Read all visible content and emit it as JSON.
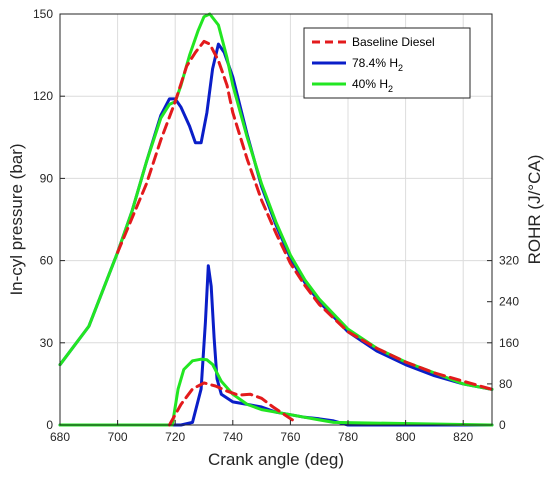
{
  "chart_data": {
    "type": "line",
    "xlabel": "Crank angle (deg)",
    "ylabel_left": "In-cyl pressure (bar)",
    "ylabel_right": "ROHR (J/°CA)",
    "xlim": [
      680,
      830
    ],
    "xticks": [
      680,
      700,
      720,
      740,
      760,
      780,
      800,
      820
    ],
    "ylim_left": [
      0,
      150
    ],
    "yticks_left": [
      0,
      30,
      60,
      90,
      120,
      150
    ],
    "ylim_right": [
      0,
      800
    ],
    "yticks_right": [
      0,
      80,
      160,
      240,
      320
    ],
    "grid": true,
    "legend_position": "top-right",
    "legend": [
      {
        "prefix": "Baseline Diesel",
        "sub": "",
        "color": "#e31a1c",
        "dash": true
      },
      {
        "prefix": "78.4% H",
        "sub": "2",
        "color": "#0a1ec8",
        "dash": false
      },
      {
        "prefix": "40% H",
        "sub": "2",
        "color": "#22e622",
        "dash": false
      }
    ],
    "pressure_series": [
      {
        "name": "Baseline Diesel",
        "color": "#e31a1c",
        "dash": true,
        "x": [
          700,
          710,
          715,
          720,
          724,
          727,
          730,
          732,
          735,
          738,
          740,
          745,
          750,
          755,
          760,
          765,
          770,
          780,
          790,
          800,
          810,
          820,
          830
        ],
        "y": [
          63,
          88,
          104,
          118,
          131,
          136,
          140,
          139,
          133,
          124,
          114,
          97,
          82,
          70,
          59,
          51,
          44,
          34,
          28,
          23,
          19,
          16,
          13
        ]
      },
      {
        "name": "78.4% H2",
        "color": "#0a1ec8",
        "dash": false,
        "x": [
          680,
          690,
          700,
          705,
          710,
          715,
          718,
          720,
          722,
          725,
          727,
          729,
          731,
          733,
          735,
          737,
          740,
          745,
          750,
          755,
          760,
          765,
          770,
          780,
          790,
          800,
          810,
          820,
          830
        ],
        "y": [
          22,
          36,
          63,
          78,
          96,
          113,
          119,
          119,
          116,
          109,
          103,
          103,
          114,
          130,
          139,
          136,
          127,
          106,
          87,
          73,
          61,
          52,
          45,
          34,
          27,
          22,
          18,
          15,
          13
        ]
      },
      {
        "name": "40% H2",
        "color": "#22e622",
        "dash": false,
        "x": [
          680,
          690,
          700,
          705,
          710,
          715,
          718,
          720,
          722,
          725,
          728,
          730,
          732,
          735,
          738,
          740,
          745,
          750,
          755,
          760,
          765,
          770,
          780,
          790,
          800,
          810,
          820,
          830
        ],
        "y": [
          22,
          36,
          63,
          78,
          96,
          112,
          117,
          118,
          124,
          135,
          144,
          149,
          150,
          146,
          134,
          124,
          105,
          88,
          74,
          62,
          53,
          46,
          35,
          28,
          23,
          19,
          15,
          13
        ]
      }
    ],
    "rohr_series": [
      {
        "name": "Baseline Diesel",
        "color": "#e31a1c",
        "dash": true,
        "x": [
          718,
          722,
          726,
          730,
          734,
          738,
          742,
          746,
          750,
          754,
          758,
          762
        ],
        "y": [
          0,
          40,
          70,
          82,
          76,
          66,
          58,
          60,
          52,
          35,
          20,
          5
        ]
      },
      {
        "name": "78.4% H2",
        "color": "#0a1ec8",
        "dash": false,
        "x": [
          680,
          722,
          726,
          729,
          730.5,
          731.5,
          732.5,
          733.5,
          734.5,
          736,
          740,
          745,
          750,
          755,
          760,
          765,
          770,
          775,
          780,
          830
        ],
        "y": [
          0,
          0,
          5,
          70,
          200,
          310,
          270,
          170,
          90,
          60,
          45,
          40,
          35,
          25,
          20,
          15,
          12,
          8,
          0,
          0
        ]
      },
      {
        "name": "40% H2",
        "color": "#22e622",
        "dash": false,
        "x": [
          680,
          719,
          721,
          723,
          726,
          729,
          731,
          733,
          736,
          740,
          745,
          750,
          755,
          760,
          765,
          770,
          775,
          830
        ],
        "y": [
          0,
          0,
          70,
          108,
          125,
          128,
          127,
          118,
          85,
          60,
          40,
          30,
          25,
          20,
          15,
          10,
          5,
          0
        ]
      }
    ]
  }
}
